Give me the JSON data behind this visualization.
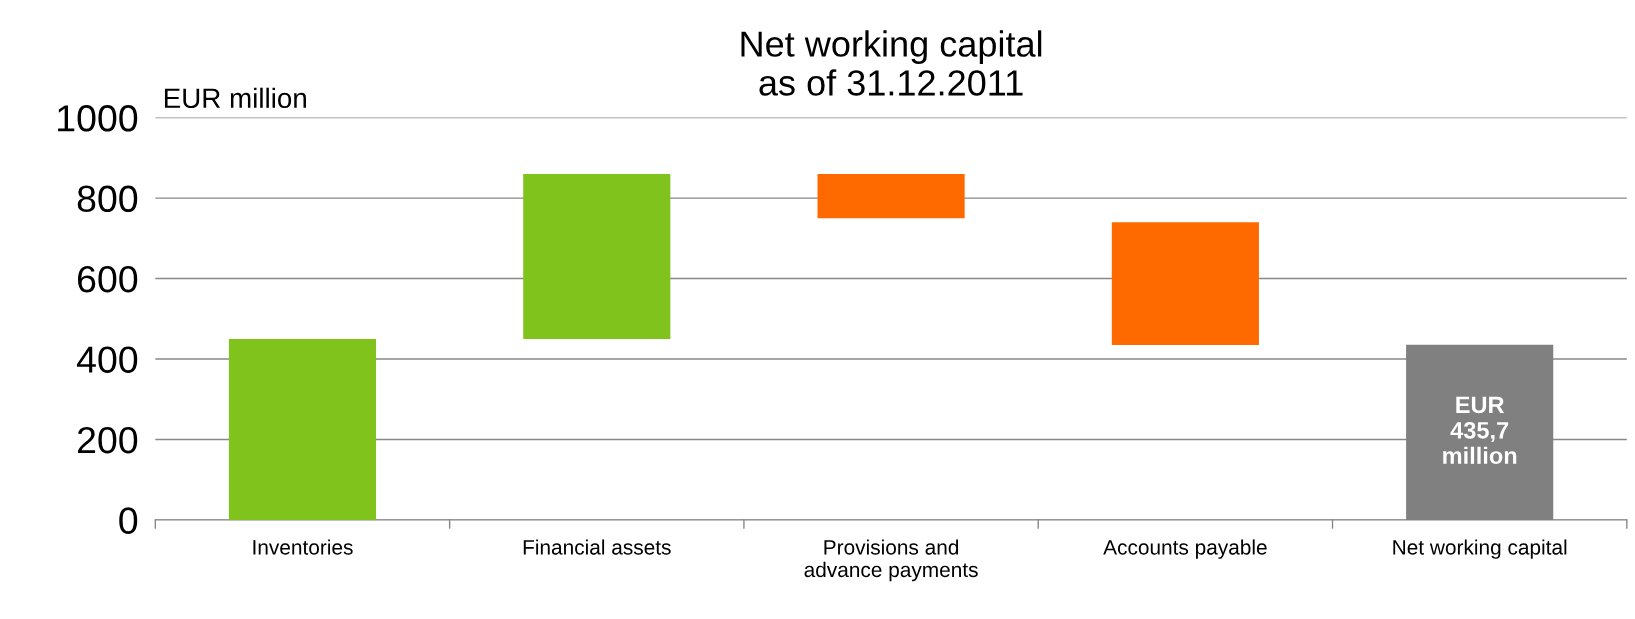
{
  "chart_data": {
    "type": "bar",
    "title": "Net working capital\nas of 31.12.2011",
    "ylabel": "EUR million",
    "categories": [
      "Inventories",
      "Financial assets",
      "Provisions and\nadvance payments",
      "Accounts payable",
      "Net working capital"
    ],
    "base": [
      0,
      450,
      860,
      740,
      0
    ],
    "values": [
      450,
      410,
      -110,
      -305,
      435.7
    ],
    "colors": [
      "#80c31c",
      "#80c31c",
      "#ff6a00",
      "#ff6a00",
      "#808080"
    ],
    "value_labels": [
      null,
      null,
      null,
      null,
      "EUR\n435,7\nmillion"
    ],
    "ylim": [
      0,
      1000
    ],
    "yticks": [
      0,
      200,
      400,
      600,
      800,
      1000
    ],
    "grid": "y"
  }
}
